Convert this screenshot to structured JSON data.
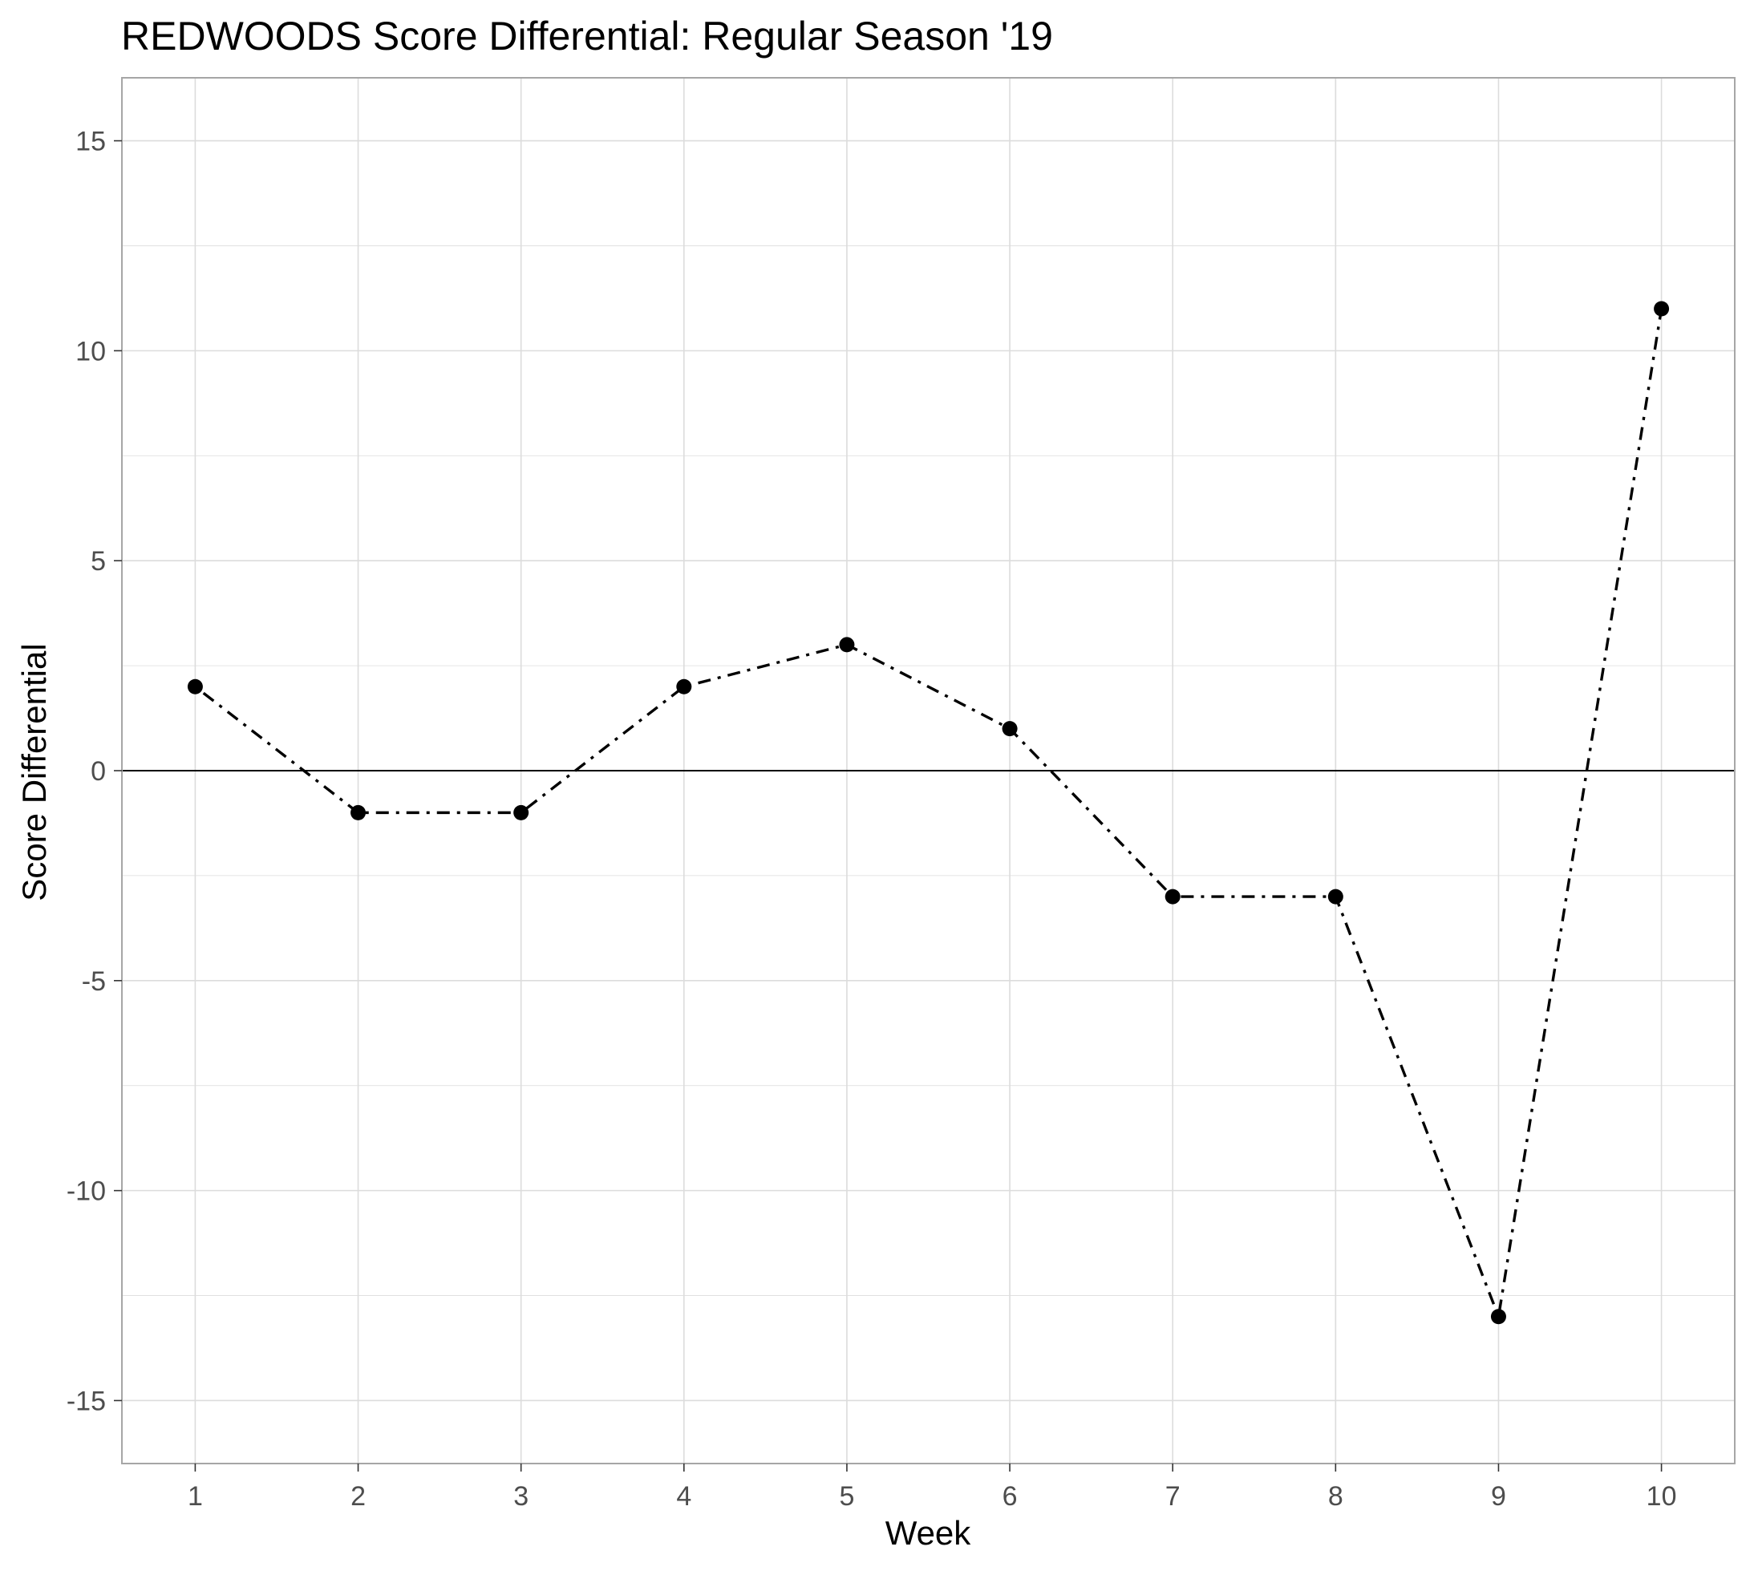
{
  "chart_data": {
    "type": "line",
    "title": "REDWOODS Score Differential: Regular Season '19",
    "xlabel": "Week",
    "ylabel": "Score Differential",
    "x": [
      1,
      2,
      3,
      4,
      5,
      6,
      7,
      8,
      9,
      10
    ],
    "y": [
      2,
      -1,
      -1,
      2,
      3,
      1,
      -3,
      -3,
      -13,
      11
    ],
    "x_ticks": [
      "1",
      "2",
      "3",
      "4",
      "5",
      "6",
      "7",
      "8",
      "9",
      "10"
    ],
    "y_ticks": [
      "15",
      "10",
      "5",
      "0",
      "-5",
      "-10",
      "-15"
    ],
    "xlim": [
      0.55,
      10.45
    ],
    "ylim": [
      -16.5,
      16.5
    ],
    "grid": true,
    "reference_line_y": 0,
    "line_style": "dot-dash",
    "line_color": "#000000",
    "point_color": "#000000",
    "gridline_color": "#dcdcdc",
    "panel_border_color": "#a6a6a6"
  }
}
